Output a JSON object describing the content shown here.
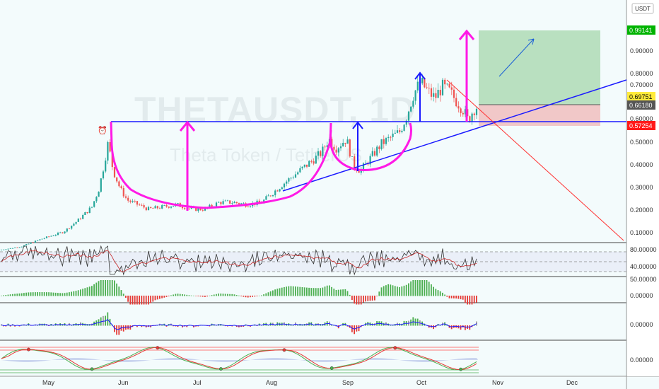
{
  "watermark": {
    "symbol": "THETAUSDT, 1D",
    "description": "Theta Token / TetherUS"
  },
  "currency_badge": "USDT",
  "price_axis": {
    "ticks": [
      "0.90000",
      "0.80000",
      "0.70000",
      "0.60000",
      "0.50000",
      "0.40000",
      "0.30000",
      "0.20000",
      "0.10000"
    ],
    "labels": [
      {
        "text": "0.99141",
        "color": "#00b300"
      },
      {
        "text": "0.69751",
        "color": "#ffeb3b"
      },
      {
        "text": "0.66180",
        "color": "#555555"
      },
      {
        "text": "0.57254",
        "color": "#ff1a1a"
      }
    ]
  },
  "rsi_axis": [
    "80.00000",
    "40.00000"
  ],
  "macd_axis": [
    "50.00000",
    "0.00000"
  ],
  "momentum_axis": [
    "0.00000"
  ],
  "stoch_axis": [
    "0.00000"
  ],
  "time_axis": [
    "May",
    "Jun",
    "Jul",
    "Aug",
    "Sep",
    "Oct",
    "Nov",
    "Dec"
  ],
  "chart_data": {
    "type": "candlestick",
    "symbol": "THETAUSDT",
    "timeframe": "1D",
    "price_range": [
      0.02,
      1.02
    ],
    "current_price": 0.6618,
    "neckline": 0.585,
    "target": 0.99141,
    "stop": 0.57254,
    "entry": 0.6618,
    "price_path": [
      [
        0,
        0.03
      ],
      [
        30,
        0.045
      ],
      [
        60,
        0.08
      ],
      [
        90,
        0.11
      ],
      [
        110,
        0.16
      ],
      [
        130,
        0.22
      ],
      [
        140,
        0.3
      ],
      [
        148,
        0.42
      ],
      [
        152,
        0.5
      ],
      [
        156,
        0.45
      ],
      [
        160,
        0.38
      ],
      [
        170,
        0.3
      ],
      [
        180,
        0.25
      ],
      [
        195,
        0.23
      ],
      [
        210,
        0.21
      ],
      [
        230,
        0.22
      ],
      [
        250,
        0.23
      ],
      [
        270,
        0.21
      ],
      [
        290,
        0.21
      ],
      [
        310,
        0.24
      ],
      [
        330,
        0.24
      ],
      [
        350,
        0.23
      ],
      [
        370,
        0.24
      ],
      [
        385,
        0.28
      ],
      [
        400,
        0.32
      ],
      [
        420,
        0.37
      ],
      [
        440,
        0.42
      ],
      [
        455,
        0.46
      ],
      [
        465,
        0.52
      ],
      [
        475,
        0.48
      ],
      [
        490,
        0.52
      ],
      [
        500,
        0.4
      ],
      [
        510,
        0.38
      ],
      [
        525,
        0.44
      ],
      [
        540,
        0.5
      ],
      [
        555,
        0.53
      ],
      [
        565,
        0.55
      ],
      [
        575,
        0.62
      ],
      [
        585,
        0.72
      ],
      [
        595,
        0.77
      ],
      [
        605,
        0.73
      ],
      [
        615,
        0.7
      ],
      [
        625,
        0.75
      ],
      [
        635,
        0.73
      ],
      [
        645,
        0.69
      ],
      [
        655,
        0.65
      ],
      [
        662,
        0.6
      ],
      [
        668,
        0.64
      ],
      [
        672,
        0.66
      ],
      [
        676,
        0.662
      ]
    ]
  }
}
